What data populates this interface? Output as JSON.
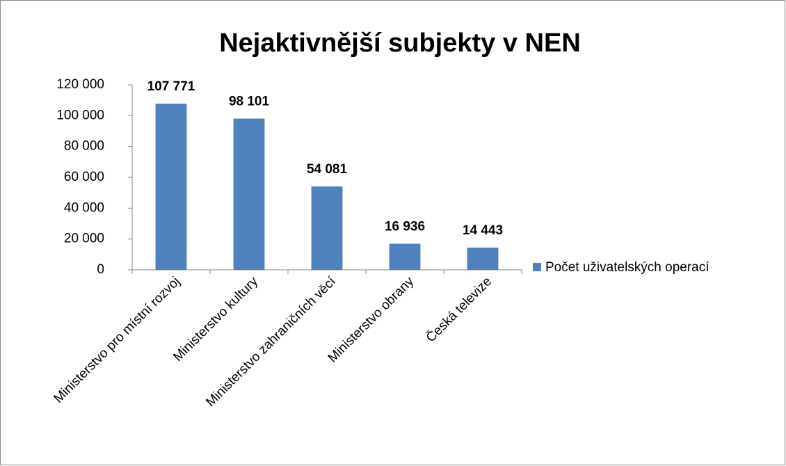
{
  "chart_data": {
    "type": "bar",
    "title": "Nejaktivnější subjekty v NEN",
    "categories": [
      "Ministerstvo pro místní rozvoj",
      "Ministerstvo kultury",
      "Ministerstvo zahraničních věcí",
      "Ministerstvo obrany",
      "Česká televize"
    ],
    "series": [
      {
        "name": "Počet uživatelských operací",
        "color": "#4f81bd",
        "values": [
          107771,
          98101,
          54081,
          16936,
          14443
        ],
        "value_labels": [
          "107 771",
          "98 101",
          "54 081",
          "16 936",
          "14 443"
        ]
      }
    ],
    "ylim": [
      0,
      120000
    ],
    "yticks": [
      0,
      {
        "value": 20000,
        "label": "20 000"
      },
      {
        "value": 40000,
        "label": "40 000"
      },
      {
        "value": 60000,
        "label": "60 000"
      },
      {
        "value": 80000,
        "label": "80 000"
      },
      {
        "value": 100000,
        "label": "100 000"
      },
      {
        "value": 120000,
        "label": "120 000"
      }
    ],
    "legend": "right",
    "grid": false
  }
}
